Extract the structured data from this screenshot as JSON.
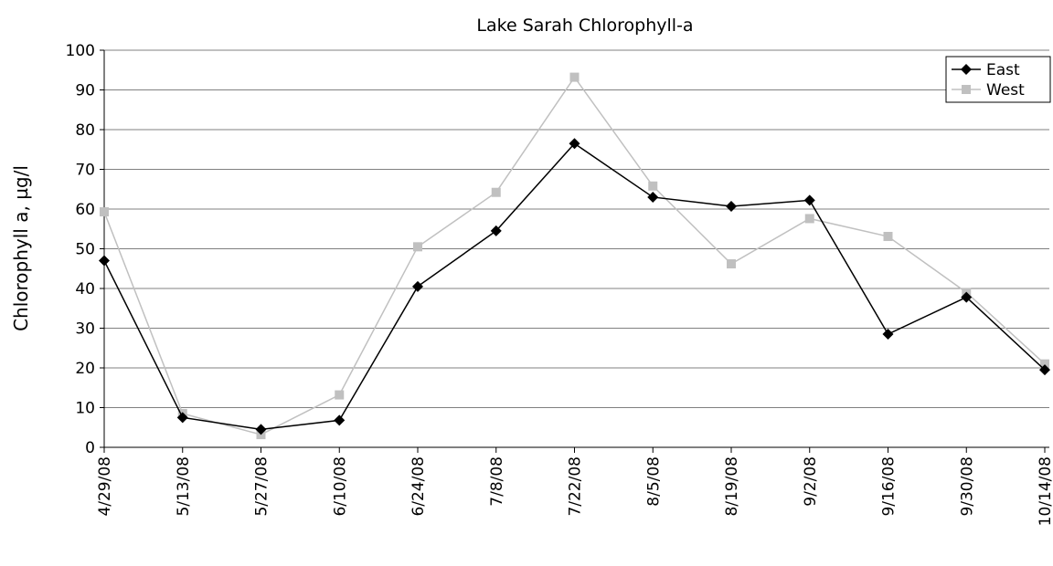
{
  "chart_data": {
    "type": "line",
    "title": "Lake Sarah Chlorophyll-a",
    "y_label": "Chlorophyll a, µg/l",
    "categories": [
      "4/29/08",
      "5/13/08",
      "5/27/08",
      "6/10/08",
      "6/24/08",
      "7/8/08",
      "7/22/08",
      "8/5/08",
      "8/19/08",
      "9/2/08",
      "9/16/08",
      "9/30/08",
      "10/14/08"
    ],
    "series": [
      {
        "name": "East",
        "color": "#000000",
        "marker": "diamond",
        "values": [
          47,
          7.5,
          4.5,
          6.8,
          40.5,
          54.5,
          76.5,
          63,
          60.7,
          62.2,
          28.5,
          37.8,
          19.5
        ]
      },
      {
        "name": "West",
        "color": "#c0c0c0",
        "marker": "square",
        "values": [
          59.3,
          8.5,
          3.2,
          13.2,
          50.5,
          64.2,
          93.2,
          65.8,
          46.2,
          57.6,
          53.1,
          39,
          21
        ]
      }
    ],
    "ylim": [
      0,
      100
    ],
    "yticks": [
      0,
      10,
      20,
      30,
      40,
      50,
      60,
      70,
      80,
      90,
      100
    ],
    "grid": true,
    "legend": "top-right"
  }
}
